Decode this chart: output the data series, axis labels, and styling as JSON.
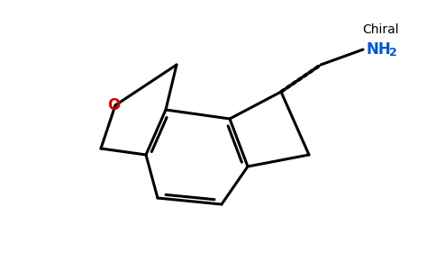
{
  "figsize": [
    4.84,
    3.0
  ],
  "dpi": 100,
  "bg": "#ffffff",
  "lw": 2.2,
  "bond_color": "#000000",
  "O_color": "#cc0000",
  "N_color": "#0055cc",
  "chiral_text": "Chiral",
  "nh2_text": "NH",
  "nh2_sub": "2"
}
